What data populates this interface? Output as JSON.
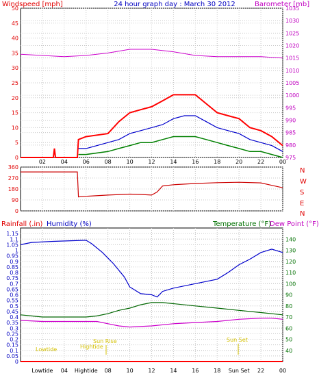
{
  "colors": {
    "wind": "#ff0000",
    "gust_bg": "#ff0000",
    "wind_avg": "#0000cc",
    "wind_min": "#008000",
    "baro": "#cc00cc",
    "dir": "#cc0000",
    "rain": "#ff0000",
    "humidity": "#0000cc",
    "temperature": "#006600",
    "dewpoint": "#cc00cc",
    "tide": "#e0c000"
  },
  "header": {
    "windspeed_label": "Windspeed [mph]",
    "title": "24 hour graph day : March 30 2012",
    "barometer_label": "Barometer [mb]"
  },
  "panel2": {
    "direction_letters": [
      "N",
      "W",
      "S",
      "E",
      "N"
    ]
  },
  "panel3": {
    "rainfall_label": "Rainfall (.in)",
    "humidity_label": "Humidity (%)",
    "temperature_label": "Temperature (°F)",
    "dewpoint_label": "Dew Point (°F)"
  },
  "chart_data": [
    {
      "type": "line",
      "title": "24 hour graph day : March 30 2012",
      "x_ticks": [
        "02",
        "04",
        "06",
        "08",
        "10",
        "12",
        "14",
        "16",
        "18",
        "20",
        "22",
        "00"
      ],
      "y_left": {
        "label": "Windspeed [mph]",
        "range": [
          0,
          50
        ],
        "ticks": [
          0,
          5,
          10,
          15,
          20,
          25,
          30,
          35,
          40,
          45,
          50
        ]
      },
      "y_right": {
        "label": "Barometer [mb]",
        "range": [
          975,
          1035
        ],
        "ticks": [
          975,
          980,
          985,
          990,
          995,
          1000,
          1005,
          1010,
          1015,
          1020,
          1025,
          1030,
          1035
        ]
      },
      "grid": true,
      "series": [
        {
          "axis": "left",
          "x": [
            0,
            3,
            3.1,
            3.2,
            5.2,
            5.3,
            6,
            8,
            9,
            10,
            11,
            12,
            13,
            14,
            15,
            16,
            17,
            18,
            19,
            20,
            21,
            22,
            23,
            24
          ],
          "values": [
            0,
            0,
            3,
            0,
            0,
            6,
            7,
            8,
            12,
            15,
            16,
            17,
            19,
            21,
            21,
            21,
            18,
            15,
            14,
            13,
            10,
            9,
            7,
            4
          ]
        },
        {
          "axis": "left",
          "x": [
            5.3,
            6,
            8,
            9,
            10,
            11,
            12,
            13,
            14,
            15,
            16,
            17,
            18,
            19,
            20,
            21,
            22,
            23,
            24
          ],
          "values": [
            3,
            3,
            5,
            6,
            8,
            9,
            10,
            11,
            13,
            14,
            14,
            12,
            10,
            9,
            8,
            6,
            5,
            4,
            2
          ]
        },
        {
          "axis": "left",
          "x": [
            5.3,
            6,
            8,
            9,
            10,
            11,
            12,
            13,
            14,
            15,
            16,
            17,
            18,
            19,
            20,
            21,
            22,
            23,
            24
          ],
          "values": [
            1,
            1,
            2,
            3,
            4,
            5,
            5,
            6,
            7,
            7,
            7,
            6,
            5,
            4,
            3,
            2,
            2,
            1,
            0
          ]
        },
        {
          "axis": "right",
          "x": [
            0,
            2,
            4,
            6,
            8,
            10,
            12,
            14,
            16,
            18,
            20,
            22,
            24
          ],
          "values": [
            1016.5,
            1016,
            1015.5,
            1016,
            1017,
            1018.5,
            1018.5,
            1017.5,
            1016,
            1015.5,
            1015.5,
            1015.5,
            1015
          ]
        }
      ]
    },
    {
      "type": "line",
      "y_left": {
        "range": [
          0,
          360
        ],
        "ticks": [
          0,
          90,
          180,
          270,
          360
        ]
      },
      "y_right_labels": [
        "N",
        "W",
        "S",
        "E",
        "N"
      ],
      "grid": true,
      "series": [
        {
          "x": [
            0,
            5.2,
            5.3,
            6,
            8,
            10,
            11,
            12,
            12.5,
            13,
            14,
            16,
            18,
            20,
            22,
            23,
            24
          ],
          "values": [
            320,
            320,
            115,
            120,
            130,
            138,
            135,
            130,
            155,
            205,
            215,
            225,
            232,
            235,
            230,
            210,
            190
          ]
        }
      ]
    },
    {
      "type": "line",
      "x_ticks": [
        "Lowtide",
        "04",
        "Hightide",
        "08",
        "10",
        "12",
        "14",
        "16",
        "18",
        "Sun Set",
        "22",
        "00"
      ],
      "annotations": [
        "Lowtide",
        "Sun Rise",
        "Hightide",
        "Sun Set"
      ],
      "y_left": {
        "label": "Rainfall (.in)",
        "range": [
          0,
          1.2
        ],
        "ticks": [
          0,
          0.05,
          0.1,
          0.15,
          0.2,
          0.25,
          0.3,
          0.35,
          0.4,
          0.45,
          0.5,
          0.55,
          0.6,
          0.65,
          0.7,
          0.75,
          0.8,
          0.85,
          0.9,
          0.95,
          1,
          1.05,
          1.1,
          1.15
        ]
      },
      "y_right": {
        "label": "Temperature (°F)",
        "range": [
          30,
          150
        ],
        "ticks": [
          40,
          50,
          60,
          70,
          80,
          90,
          100,
          110,
          120,
          130,
          140
        ]
      },
      "grid": true,
      "series": [
        {
          "name": "Rainfall (.in)",
          "axis": "left",
          "x": [
            0,
            24
          ],
          "values": [
            0,
            0
          ]
        },
        {
          "name": "Humidity (%)",
          "axis": "right",
          "x": [
            0,
            1,
            3,
            6,
            6.5,
            7.5,
            8.5,
            9.5,
            10,
            11,
            12,
            12.5,
            13,
            14,
            16,
            18,
            19,
            20,
            21,
            22,
            23,
            24
          ],
          "values": [
            135,
            137,
            138,
            139,
            136,
            128,
            118,
            106,
            97,
            91,
            90,
            88,
            93,
            96,
            100,
            104,
            110,
            117,
            122,
            128,
            131,
            128
          ]
        },
        {
          "name": "Temperature (°F)",
          "axis": "right",
          "x": [
            0,
            1,
            2,
            4,
            6,
            7,
            8,
            9,
            10,
            11,
            12,
            13,
            14,
            16,
            18,
            20,
            22,
            24
          ],
          "values": [
            72,
            71,
            70,
            70,
            70,
            71,
            73,
            76,
            78,
            81,
            83,
            83,
            82,
            80,
            78,
            76,
            74,
            72
          ]
        },
        {
          "name": "Dew Point (°F)",
          "axis": "right",
          "x": [
            0,
            2,
            4,
            6,
            7,
            8,
            9,
            10,
            12,
            14,
            16,
            18,
            20,
            22,
            23,
            24
          ],
          "values": [
            67,
            66,
            66,
            66,
            66,
            64,
            62,
            61,
            62,
            64,
            65,
            66,
            68,
            69,
            69,
            68
          ]
        }
      ]
    }
  ]
}
